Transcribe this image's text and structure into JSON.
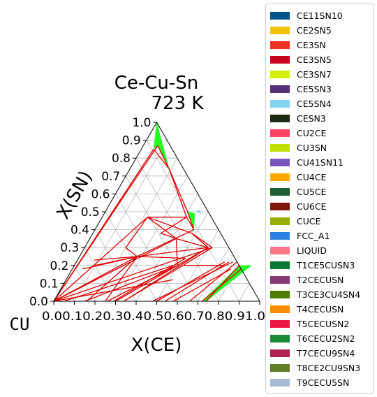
{
  "chart_data": {
    "type": "ternary-phase-diagram",
    "title_line1": "Ce-Cu-Sn",
    "title_line2": "723  K",
    "corner_label": "CU",
    "xlabel": "X(CE)",
    "ylabel": "X(SN)",
    "xticks": [
      "0.0",
      "0.1",
      "0.2",
      "0.3",
      "0.4",
      "0.5",
      "0.6",
      "0.7",
      "0.8",
      "0.9",
      "1.0"
    ],
    "xtick_text": "0.00.10.20.30.40.50.60.70.80.91.0",
    "yticks": [
      "0.0",
      "0.1",
      "0.2",
      "0.3",
      "0.4",
      "0.5",
      "0.6",
      "0.7",
      "0.8",
      "0.9",
      "1.0"
    ],
    "xlim": [
      0,
      1
    ],
    "ylim": [
      0,
      1
    ],
    "grid": true,
    "legend_position": "right",
    "legend": [
      {
        "name": "CE11SN10",
        "color": "#00558c"
      },
      {
        "name": "CE2SN5",
        "color": "#f2c200"
      },
      {
        "name": "CE3SN",
        "color": "#ee3322"
      },
      {
        "name": "CE3SN5",
        "color": "#c8001e"
      },
      {
        "name": "CE3SN7",
        "color": "#d4f000"
      },
      {
        "name": "CE5SN3",
        "color": "#55307a"
      },
      {
        "name": "CE5SN4",
        "color": "#7fd4ee"
      },
      {
        "name": "CESN3",
        "color": "#1c2a14"
      },
      {
        "name": "CU2CE",
        "color": "#ff4466"
      },
      {
        "name": "CU3SN",
        "color": "#c0e000"
      },
      {
        "name": "CU41SN11",
        "color": "#7755bb"
      },
      {
        "name": "CU4CE",
        "color": "#ffaa00"
      },
      {
        "name": "CU5CE",
        "color": "#1e6034"
      },
      {
        "name": "CU6CE",
        "color": "#801810"
      },
      {
        "name": "CUCE",
        "color": "#9aae00"
      },
      {
        "name": "FCC_A1",
        "color": "#2b82e0"
      },
      {
        "name": "LIQUID",
        "color": "#ff7788"
      },
      {
        "name": "T1CE5CUSN3",
        "color": "#007a33"
      },
      {
        "name": "T2CECUSN",
        "color": "#843c70"
      },
      {
        "name": "T3CE3CU4SN4",
        "color": "#4e7c00"
      },
      {
        "name": "T4CECUSN",
        "color": "#ff8c00"
      },
      {
        "name": "T5CECUSN2",
        "color": "#ee1844"
      },
      {
        "name": "T6CECU2SN2",
        "color": "#1a8a38"
      },
      {
        "name": "T7CECU9SN4",
        "color": "#b02050"
      },
      {
        "name": "T8CE2CU9SN3",
        "color": "#5e7e28"
      },
      {
        "name": "T9CECU5SN",
        "color": "#a8bcd8"
      }
    ],
    "tie_lines": [
      [
        [
          0.0,
          0.0
        ],
        [
          0.62,
          0.3
        ]
      ],
      [
        [
          0.0,
          0.0
        ],
        [
          0.42,
          0.35
        ]
      ],
      [
        [
          0.0,
          0.0
        ],
        [
          0.22,
          0.47
        ]
      ],
      [
        [
          0.0,
          0.0
        ],
        [
          0.06,
          0.85
        ]
      ],
      [
        [
          0.0,
          0.0
        ],
        [
          0.07,
          0.87
        ]
      ],
      [
        [
          0.0,
          0.0
        ],
        [
          0.28,
          0.25
        ]
      ],
      [
        [
          0.0,
          0.0
        ],
        [
          0.52,
          0.12
        ]
      ],
      [
        [
          0.05,
          0.0
        ],
        [
          0.48,
          0.2
        ]
      ],
      [
        [
          0.15,
          0.0
        ],
        [
          0.5,
          0.2
        ]
      ],
      [
        [
          0.16,
          0.0
        ],
        [
          0.28,
          0.25
        ]
      ],
      [
        [
          0.26,
          0.0
        ],
        [
          0.5,
          0.2
        ]
      ],
      [
        [
          0.25,
          0.0
        ],
        [
          0.28,
          0.25
        ]
      ],
      [
        [
          0.3,
          0.0
        ],
        [
          0.5,
          0.2
        ]
      ],
      [
        [
          0.29,
          0.0
        ],
        [
          0.52,
          0.24
        ]
      ],
      [
        [
          0.34,
          0.0
        ],
        [
          0.6,
          0.3
        ]
      ],
      [
        [
          0.34,
          0.0
        ],
        [
          0.62,
          0.3
        ]
      ],
      [
        [
          0.48,
          0.0
        ],
        [
          0.76,
          0.22
        ]
      ],
      [
        [
          0.5,
          0.0
        ],
        [
          0.72,
          0.22
        ]
      ],
      [
        [
          0.58,
          0.0
        ],
        [
          0.77,
          0.18
        ]
      ],
      [
        [
          0.54,
          0.0
        ],
        [
          0.74,
          0.22
        ]
      ],
      [
        [
          0.66,
          0.0
        ],
        [
          0.78,
          0.22
        ]
      ],
      [
        [
          0.72,
          0.0
        ],
        [
          0.82,
          0.18
        ]
      ],
      [
        [
          0.74,
          0.0
        ],
        [
          0.8,
          0.2
        ]
      ],
      [
        [
          0.28,
          0.25
        ],
        [
          0.52,
          0.24
        ]
      ],
      [
        [
          0.28,
          0.25
        ],
        [
          0.6,
          0.3
        ]
      ],
      [
        [
          0.28,
          0.25
        ],
        [
          0.48,
          0.4
        ]
      ],
      [
        [
          0.22,
          0.47
        ],
        [
          0.42,
          0.35
        ]
      ],
      [
        [
          0.22,
          0.47
        ],
        [
          0.48,
          0.38
        ]
      ],
      [
        [
          0.22,
          0.47
        ],
        [
          0.41,
          0.47
        ]
      ],
      [
        [
          0.06,
          0.85
        ],
        [
          0.19,
          0.74
        ]
      ],
      [
        [
          0.07,
          0.87
        ],
        [
          0.19,
          0.74
        ]
      ],
      [
        [
          0.19,
          0.74
        ],
        [
          0.41,
          0.47
        ]
      ],
      [
        [
          0.19,
          0.74
        ],
        [
          0.4,
          0.5
        ]
      ],
      [
        [
          0.41,
          0.47
        ],
        [
          0.48,
          0.4
        ]
      ],
      [
        [
          0.4,
          0.5
        ],
        [
          0.48,
          0.4
        ]
      ],
      [
        [
          0.42,
          0.35
        ],
        [
          0.6,
          0.3
        ]
      ],
      [
        [
          0.42,
          0.35
        ],
        [
          0.5,
          0.2
        ]
      ],
      [
        [
          0.48,
          0.38
        ],
        [
          0.6,
          0.3
        ]
      ],
      [
        [
          0.48,
          0.38
        ],
        [
          0.62,
          0.3
        ]
      ],
      [
        [
          0.2,
          0.3
        ],
        [
          0.28,
          0.25
        ]
      ],
      [
        [
          0.2,
          0.3
        ],
        [
          0.22,
          0.47
        ]
      ],
      [
        [
          0.1,
          0.2
        ],
        [
          0.28,
          0.25
        ]
      ],
      [
        [
          0.08,
          0.23
        ],
        [
          0.28,
          0.25
        ]
      ],
      [
        [
          0.05,
          0.18
        ],
        [
          0.28,
          0.25
        ]
      ],
      [
        [
          0.33,
          0.38
        ],
        [
          0.41,
          0.47
        ]
      ],
      [
        [
          0.33,
          0.38
        ],
        [
          0.42,
          0.35
        ]
      ],
      [
        [
          0.53,
          0.2
        ],
        [
          0.72,
          0.2
        ]
      ],
      [
        [
          0.5,
          0.2
        ],
        [
          0.6,
          0.3
        ]
      ]
    ],
    "regions": [
      {
        "phase": "CE3SN7",
        "color": "#22ff22",
        "points": [
          [
            0.0,
            1.0
          ],
          [
            0.06,
            0.85
          ],
          [
            0.07,
            0.87
          ],
          [
            0.19,
            0.74
          ]
        ]
      },
      {
        "phase": "CE3SN7",
        "color": "#22ff22",
        "points": [
          [
            0.4,
            0.5
          ],
          [
            0.48,
            0.4
          ],
          [
            0.44,
            0.49
          ]
        ]
      },
      {
        "phase": "CE3SN7",
        "color": "#22ff22",
        "points": [
          [
            0.72,
            0.0
          ],
          [
            0.74,
            0.0
          ],
          [
            0.86,
            0.2
          ],
          [
            0.8,
            0.2
          ]
        ]
      },
      {
        "phase": "CE5SN4",
        "color": "#7fd4ee",
        "points": [
          [
            0.44,
            0.5
          ],
          [
            0.47,
            0.49
          ],
          [
            0.45,
            0.51
          ]
        ]
      }
    ]
  }
}
